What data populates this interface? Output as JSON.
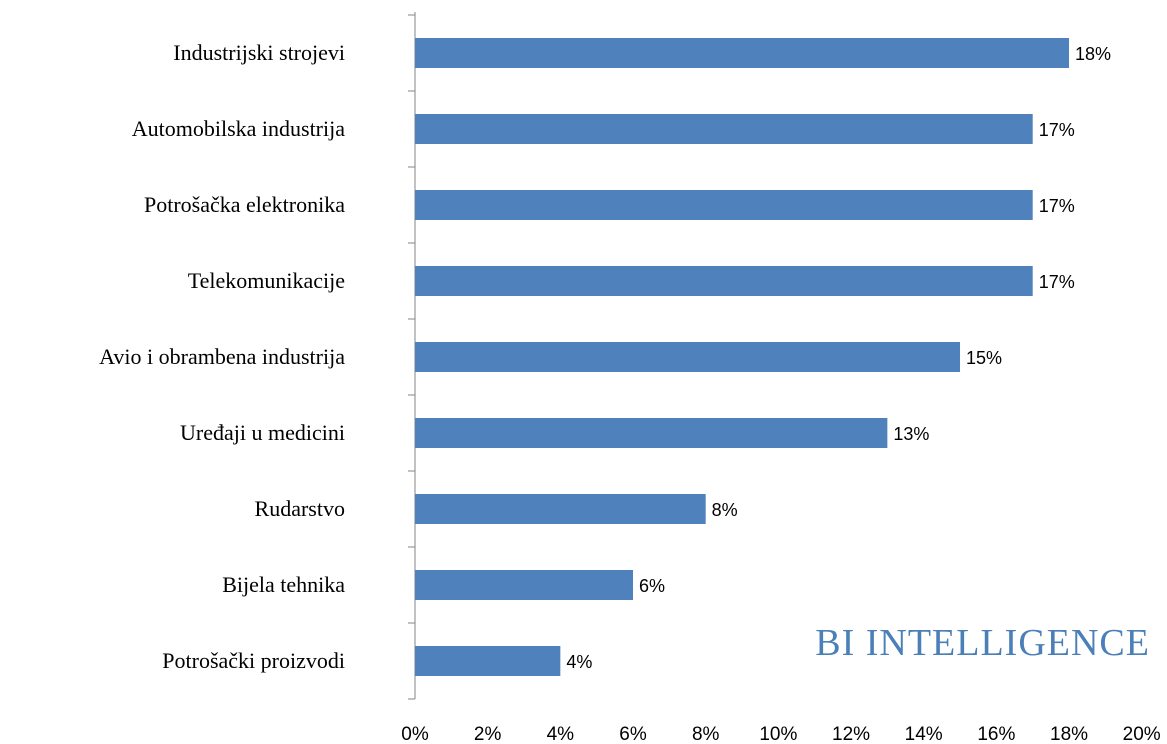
{
  "chart_data": {
    "type": "bar",
    "orientation": "horizontal",
    "categories": [
      "Industrijski strojevi",
      "Automobilska industrija",
      "Potrošačka elektronika",
      "Telekomunikacije",
      "Avio i obrambena industrija",
      "Uređaji u medicini",
      "Rudarstvo",
      "Bijela tehnika",
      "Potrošački proizvodi"
    ],
    "values": [
      18,
      17,
      17,
      17,
      15,
      13,
      8,
      6,
      4
    ],
    "value_labels": [
      "18%",
      "17%",
      "17%",
      "17%",
      "15%",
      "13%",
      "8%",
      "6%",
      "4%"
    ],
    "color": "#4f81bd",
    "xlim": [
      0,
      20
    ],
    "xticks": [
      {
        "value": 0,
        "label": "0%"
      },
      {
        "value": 2,
        "label": "2%"
      },
      {
        "value": 4,
        "label": "4%"
      },
      {
        "value": 6,
        "label": "6%"
      },
      {
        "value": 8,
        "label": "8%"
      },
      {
        "value": 10,
        "label": "10%"
      },
      {
        "value": 12,
        "label": "12%"
      },
      {
        "value": 14,
        "label": "14%"
      },
      {
        "value": 16,
        "label": "16%"
      },
      {
        "value": 18,
        "label": "18%"
      },
      {
        "value": 20,
        "label": "20%"
      }
    ],
    "grid": false,
    "watermark": "BI INTELLIGENCE"
  }
}
